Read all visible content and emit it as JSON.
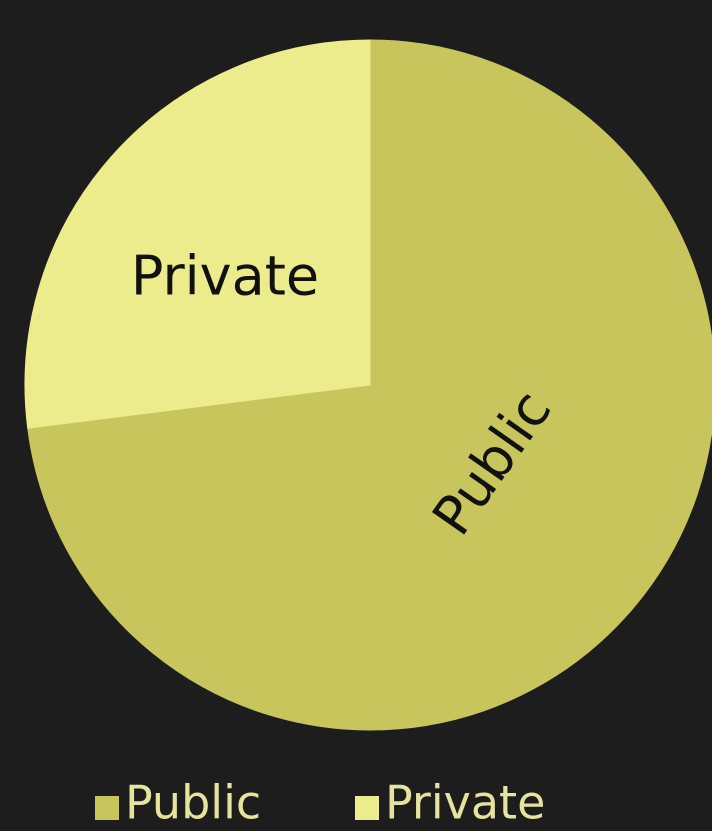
{
  "chart_data": {
    "type": "pie",
    "categories": [
      "Public",
      "Private"
    ],
    "values": [
      73,
      27
    ],
    "colors": [
      "#c8c55c",
      "#ecec8c"
    ]
  }
}
